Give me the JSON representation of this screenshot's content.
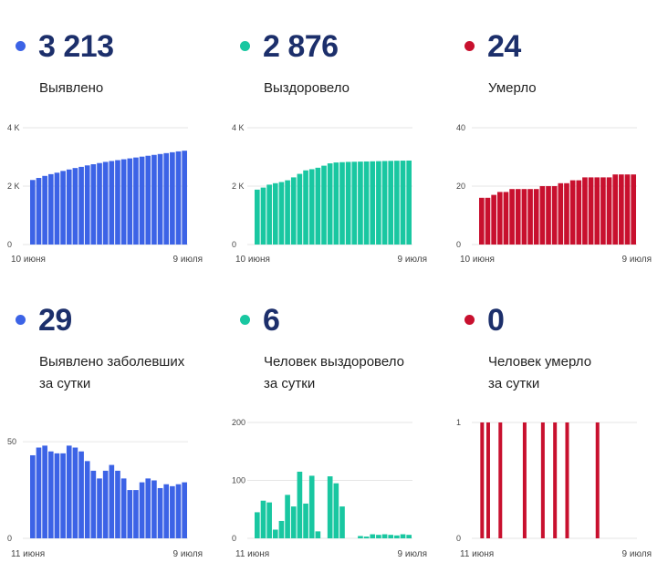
{
  "panels": [
    {
      "value": "3 213",
      "label_line1": "Выявлено",
      "label_line2": "",
      "color": "#3c63e6"
    },
    {
      "value": "2 876",
      "label_line1": "Выздоровело",
      "label_line2": "",
      "color": "#19c7a1"
    },
    {
      "value": "24",
      "label_line1": "Умерло",
      "label_line2": "",
      "color": "#c8102e"
    },
    {
      "value": "29",
      "label_line1": "Выявлено заболевших",
      "label_line2": "за сутки",
      "color": "#3c63e6"
    },
    {
      "value": "6",
      "label_line1": "Человек выздоровело",
      "label_line2": "за сутки",
      "color": "#19c7a1"
    },
    {
      "value": "0",
      "label_line1": "Человек умерло",
      "label_line2": "за сутки",
      "color": "#c8102e"
    }
  ],
  "chart_data": [
    {
      "type": "bar",
      "color": "#3c63e6",
      "ylim": [
        0,
        4000
      ],
      "yticks": [
        "4 K",
        "2 K",
        "0"
      ],
      "ytick_values": [
        4000,
        2000,
        0
      ],
      "xlabels": [
        "10 июня",
        "9 июля"
      ],
      "values": [
        2210,
        2280,
        2350,
        2410,
        2460,
        2520,
        2570,
        2620,
        2660,
        2710,
        2750,
        2790,
        2830,
        2860,
        2890,
        2920,
        2950,
        2980,
        3010,
        3040,
        3070,
        3100,
        3130,
        3160,
        3190,
        3213
      ]
    },
    {
      "type": "bar",
      "color": "#19c7a1",
      "ylim": [
        0,
        4000
      ],
      "yticks": [
        "4 K",
        "2 K",
        "0"
      ],
      "ytick_values": [
        4000,
        2000,
        0
      ],
      "xlabels": [
        "10 июня",
        "9 июля"
      ],
      "values": [
        1880,
        1950,
        2050,
        2100,
        2140,
        2200,
        2300,
        2420,
        2540,
        2580,
        2630,
        2700,
        2780,
        2810,
        2820,
        2830,
        2835,
        2840,
        2845,
        2850,
        2855,
        2860,
        2865,
        2870,
        2873,
        2876
      ]
    },
    {
      "type": "bar",
      "color": "#c8102e",
      "ylim": [
        0,
        40
      ],
      "yticks": [
        "40",
        "20",
        "0"
      ],
      "ytick_values": [
        40,
        20,
        0
      ],
      "xlabels": [
        "10 июня",
        "9 июля"
      ],
      "values": [
        16,
        16,
        17,
        18,
        18,
        19,
        19,
        19,
        19,
        19,
        20,
        20,
        20,
        21,
        21,
        22,
        22,
        23,
        23,
        23,
        23,
        23,
        24,
        24,
        24,
        24
      ]
    },
    {
      "type": "bar",
      "color": "#3c63e6",
      "ylim": [
        0,
        60
      ],
      "yticks": [
        "50",
        "0"
      ],
      "ytick_values": [
        50,
        0
      ],
      "xlabels": [
        "11 июня",
        "9 июля"
      ],
      "values": [
        43,
        47,
        48,
        45,
        44,
        44,
        48,
        47,
        45,
        40,
        35,
        31,
        35,
        38,
        35,
        31,
        25,
        25,
        29,
        31,
        30,
        26,
        28,
        27,
        28,
        29
      ]
    },
    {
      "type": "bar",
      "color": "#19c7a1",
      "ylim": [
        0,
        200
      ],
      "yticks": [
        "200",
        "100",
        "0"
      ],
      "ytick_values": [
        200,
        100,
        0
      ],
      "xlabels": [
        "11 июня",
        "9 июля"
      ],
      "values": [
        45,
        65,
        62,
        15,
        30,
        75,
        55,
        115,
        60,
        108,
        12,
        0,
        107,
        95,
        55,
        0,
        0,
        4,
        3,
        7,
        6,
        7,
        6,
        5,
        7,
        6
      ]
    },
    {
      "type": "bar",
      "color": "#c8102e",
      "ylim": [
        0,
        1
      ],
      "yticks": [
        "1",
        "0"
      ],
      "ytick_values": [
        1,
        0
      ],
      "xlabels": [
        "11 июня",
        "9 июля"
      ],
      "values": [
        1,
        1,
        0,
        1,
        0,
        0,
        0,
        1,
        0,
        0,
        1,
        0,
        1,
        0,
        1,
        0,
        0,
        0,
        0,
        1,
        0,
        0,
        0,
        0,
        0,
        0
      ]
    }
  ]
}
